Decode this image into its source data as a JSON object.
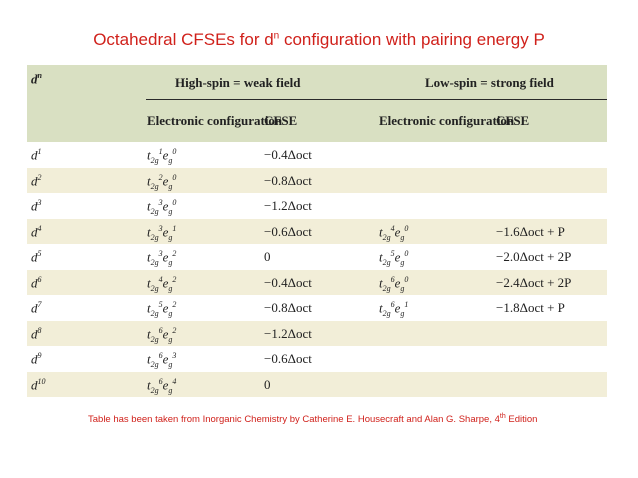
{
  "title": {
    "text_before": "Octahedral CFSEs for d",
    "superscript": "n",
    "text_after": " configuration with pairing energy P"
  },
  "table": {
    "header": {
      "dn_label": "d",
      "dn_superscript": "n",
      "high_spin_group": "High-spin = weak field",
      "low_spin_group": "Low-spin = strong field",
      "config_label": "Electronic configuration",
      "cfse_label": "CFSE"
    },
    "rows": [
      {
        "d": "1",
        "hs_t2g": "1",
        "hs_eg": "0",
        "hs_cfse": "−0.4Δoct",
        "ls_t2g": "",
        "ls_eg": "",
        "ls_cfse": ""
      },
      {
        "d": "2",
        "hs_t2g": "2",
        "hs_eg": "0",
        "hs_cfse": "−0.8Δoct",
        "ls_t2g": "",
        "ls_eg": "",
        "ls_cfse": ""
      },
      {
        "d": "3",
        "hs_t2g": "3",
        "hs_eg": "0",
        "hs_cfse": "−1.2Δoct",
        "ls_t2g": "",
        "ls_eg": "",
        "ls_cfse": ""
      },
      {
        "d": "4",
        "hs_t2g": "3",
        "hs_eg": "1",
        "hs_cfse": "−0.6Δoct",
        "ls_t2g": "4",
        "ls_eg": "0",
        "ls_cfse": "−1.6Δoct + P"
      },
      {
        "d": "5",
        "hs_t2g": "3",
        "hs_eg": "2",
        "hs_cfse": "0",
        "ls_t2g": "5",
        "ls_eg": "0",
        "ls_cfse": "−2.0Δoct + 2P"
      },
      {
        "d": "6",
        "hs_t2g": "4",
        "hs_eg": "2",
        "hs_cfse": "−0.4Δoct",
        "ls_t2g": "6",
        "ls_eg": "0",
        "ls_cfse": "−2.4Δoct + 2P"
      },
      {
        "d": "7",
        "hs_t2g": "5",
        "hs_eg": "2",
        "hs_cfse": "−0.8Δoct",
        "ls_t2g": "6",
        "ls_eg": "1",
        "ls_cfse": "−1.8Δoct + P"
      },
      {
        "d": "8",
        "hs_t2g": "6",
        "hs_eg": "2",
        "hs_cfse": "−1.2Δoct",
        "ls_t2g": "",
        "ls_eg": "",
        "ls_cfse": ""
      },
      {
        "d": "9",
        "hs_t2g": "6",
        "hs_eg": "3",
        "hs_cfse": "−0.6Δoct",
        "ls_t2g": "",
        "ls_eg": "",
        "ls_cfse": ""
      },
      {
        "d": "10",
        "hs_t2g": "6",
        "hs_eg": "4",
        "hs_cfse": "0",
        "ls_t2g": "",
        "ls_eg": "",
        "ls_cfse": ""
      }
    ]
  },
  "caption": {
    "text": "Table has been taken from Inorganic Chemistry  by Catherine E. Housecraft and Alan G. Sharpe, 4",
    "superscript": "th",
    "suffix": " Edition"
  },
  "colors": {
    "title_red": "#d0211b",
    "header_bg": "#d9e0c2",
    "shaded_row_bg": "#f2eed8"
  }
}
